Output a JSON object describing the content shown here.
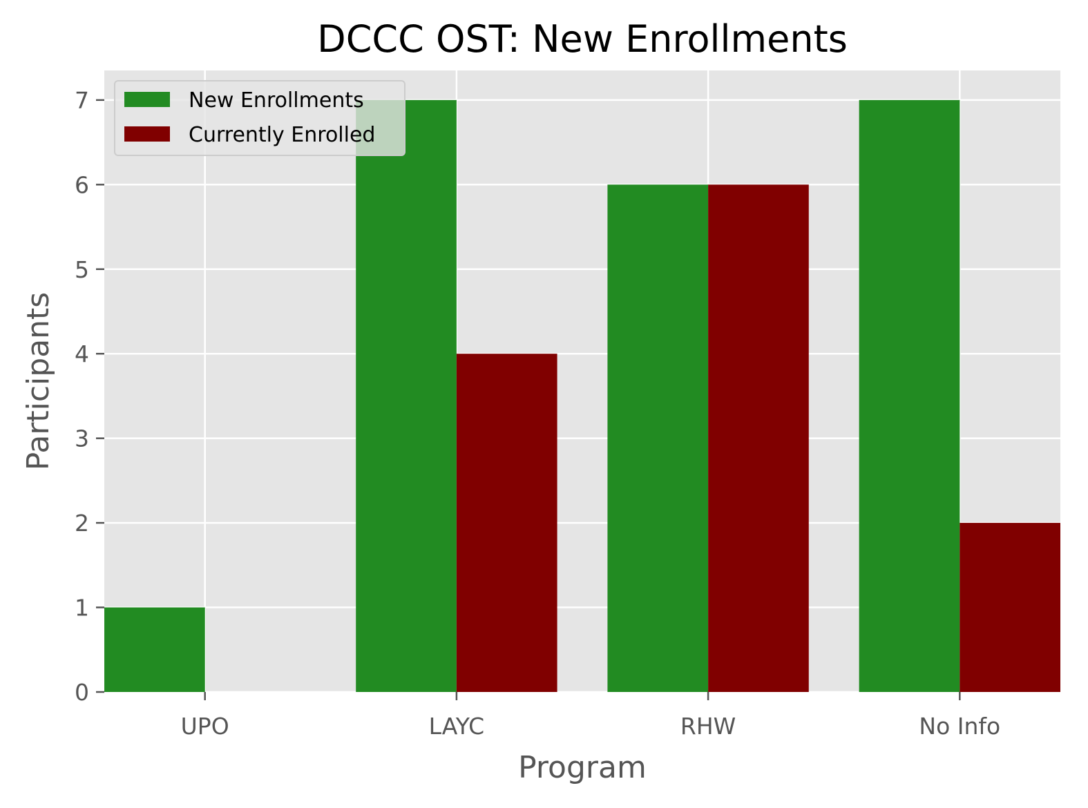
{
  "chart_data": {
    "type": "bar",
    "title": "DCCC OST: New Enrollments",
    "xlabel": "Program",
    "ylabel": "Participants",
    "categories": [
      "UPO",
      "LAYC",
      "RHW",
      "No Info"
    ],
    "series": [
      {
        "name": "New Enrollments",
        "values": [
          1,
          7,
          6,
          7
        ],
        "color": "#228B22"
      },
      {
        "name": "Currently Enrolled",
        "values": [
          0,
          4,
          6,
          2
        ],
        "color": "#800000"
      }
    ],
    "ylim": [
      0,
      7.35
    ],
    "yticks": [
      0,
      1,
      2,
      3,
      4,
      5,
      6,
      7
    ],
    "grid": true,
    "legend": "upper-left",
    "colors": {
      "background": "#E5E5E5",
      "grid": "#FFFFFF",
      "tick": "#555555"
    }
  }
}
